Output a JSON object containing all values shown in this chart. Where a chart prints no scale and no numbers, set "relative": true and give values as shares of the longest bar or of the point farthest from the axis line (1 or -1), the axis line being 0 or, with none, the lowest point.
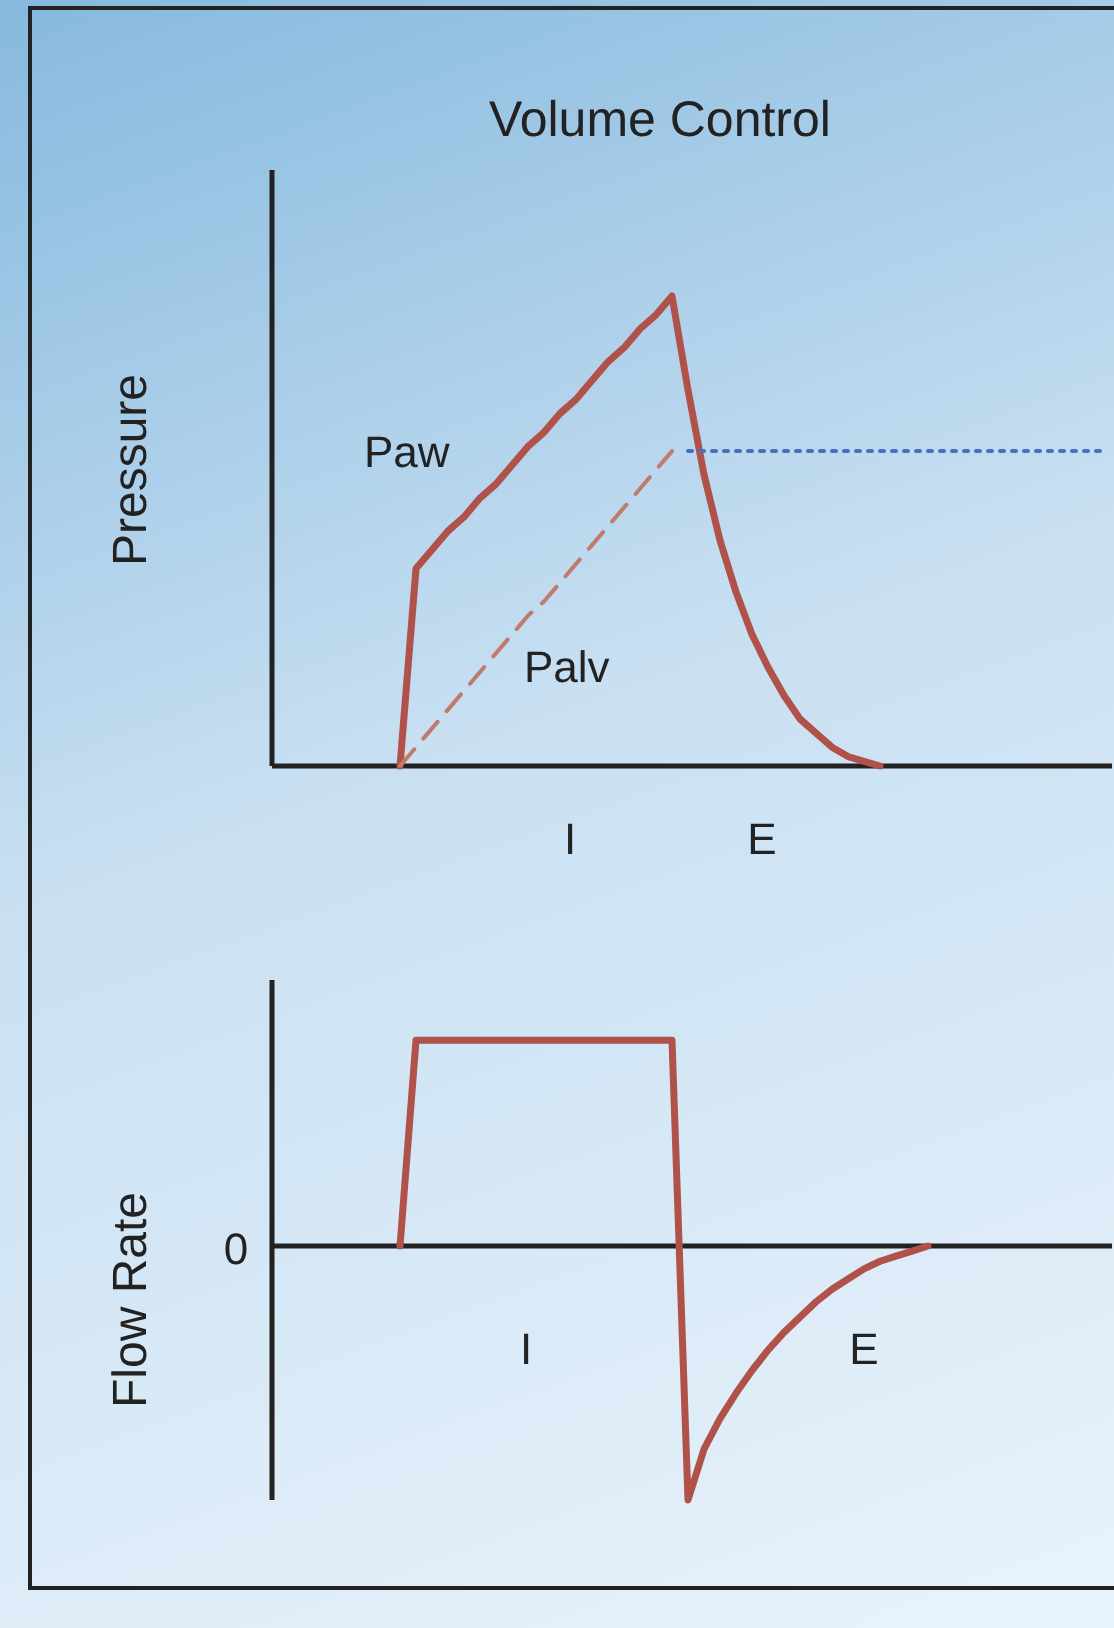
{
  "chart_data": [
    {
      "type": "line",
      "title": "Volume Control",
      "ylabel": "Pressure",
      "relative": true,
      "categories": [
        null,
        null,
        null,
        null,
        null,
        null,
        null,
        null,
        null,
        null,
        null,
        null,
        null,
        null,
        null,
        null,
        null,
        null,
        null,
        null,
        null,
        null,
        null,
        null,
        null,
        null,
        null,
        null,
        null,
        null,
        null,
        null,
        null,
        null,
        null,
        null,
        null,
        null,
        null,
        null,
        null,
        null,
        null,
        null,
        null,
        null,
        null,
        null,
        null,
        null,
        null,
        null,
        null
      ],
      "series": [
        {
          "name": "Paw",
          "color": "#b0524a",
          "line_style": "solid",
          "values": [
            null,
            null,
            null,
            null,
            null,
            null,
            null,
            null,
            0,
            0.42,
            0.46,
            0.5,
            0.53,
            0.57,
            0.6,
            0.64,
            0.68,
            0.71,
            0.75,
            0.78,
            0.82,
            0.86,
            0.89,
            0.93,
            0.96,
            1,
            0.8,
            0.62,
            0.48,
            0.37,
            0.28,
            0.21,
            0.15,
            0.1,
            0.07,
            0.04,
            0.02,
            0.01,
            0,
            null,
            null,
            null,
            null,
            null,
            null,
            null,
            null,
            null,
            null,
            null,
            null,
            null,
            null
          ]
        },
        {
          "name": "Palv",
          "color": "#c07a6e",
          "line_style": "dashed",
          "values": [
            null,
            null,
            null,
            null,
            null,
            null,
            null,
            null,
            0,
            0.04,
            0.08,
            0.12,
            0.16,
            0.2,
            0.24,
            0.28,
            0.32,
            0.35,
            0.39,
            0.43,
            0.47,
            0.51,
            0.55,
            0.59,
            0.63,
            0.67,
            null,
            null,
            null,
            null,
            null,
            null,
            null,
            null,
            null,
            null,
            null,
            null,
            null,
            null,
            null,
            null,
            null,
            null,
            null,
            null,
            null,
            null,
            null,
            null,
            null,
            null,
            null
          ]
        },
        {
          "color": "#4a6fc0",
          "line_style": "dotted",
          "values": [
            null,
            null,
            null,
            null,
            null,
            null,
            null,
            null,
            null,
            null,
            null,
            null,
            null,
            null,
            null,
            null,
            null,
            null,
            null,
            null,
            null,
            null,
            null,
            null,
            null,
            null,
            0.67,
            0.67,
            0.67,
            0.67,
            0.67,
            0.67,
            0.67,
            0.67,
            0.67,
            0.67,
            0.67,
            0.67,
            0.67,
            0.67,
            0.67,
            0.67,
            0.67,
            0.67,
            0.67,
            0.67,
            0.67,
            0.67,
            0.67,
            0.67,
            0.67,
            0.67,
            0.67
          ]
        }
      ],
      "annotations": [
        "I",
        "E"
      ]
    },
    {
      "type": "line",
      "ylabel": "Flow Rate",
      "relative": true,
      "categories": [
        null,
        null,
        null,
        null,
        null,
        null,
        null,
        null,
        null,
        null,
        null,
        null,
        null,
        null,
        null,
        null,
        null,
        null,
        null,
        null,
        null,
        null,
        null,
        null,
        null,
        null,
        null,
        null,
        null,
        null,
        null,
        null,
        null,
        null,
        null,
        null,
        null,
        null,
        null,
        null,
        null,
        null,
        null,
        null,
        null,
        null,
        null,
        null,
        null,
        null,
        null,
        null,
        null
      ],
      "series": [
        {
          "color": "#b0524a",
          "line_style": "solid",
          "values": [
            null,
            null,
            null,
            null,
            null,
            null,
            null,
            null,
            0,
            0.81,
            0.81,
            0.81,
            0.81,
            0.81,
            0.81,
            0.81,
            0.81,
            0.81,
            0.81,
            0.81,
            0.81,
            0.81,
            0.81,
            0.81,
            0.81,
            0.81,
            -1,
            -0.8,
            -0.68,
            -0.58,
            -0.49,
            -0.41,
            -0.34,
            -0.28,
            -0.22,
            -0.17,
            -0.13,
            -0.09,
            -0.06,
            -0.04,
            -0.02,
            0,
            null,
            null,
            null,
            null,
            null,
            null,
            null,
            null,
            null,
            null,
            null
          ]
        }
      ],
      "annotations": [
        "0",
        "I",
        "E"
      ]
    }
  ]
}
